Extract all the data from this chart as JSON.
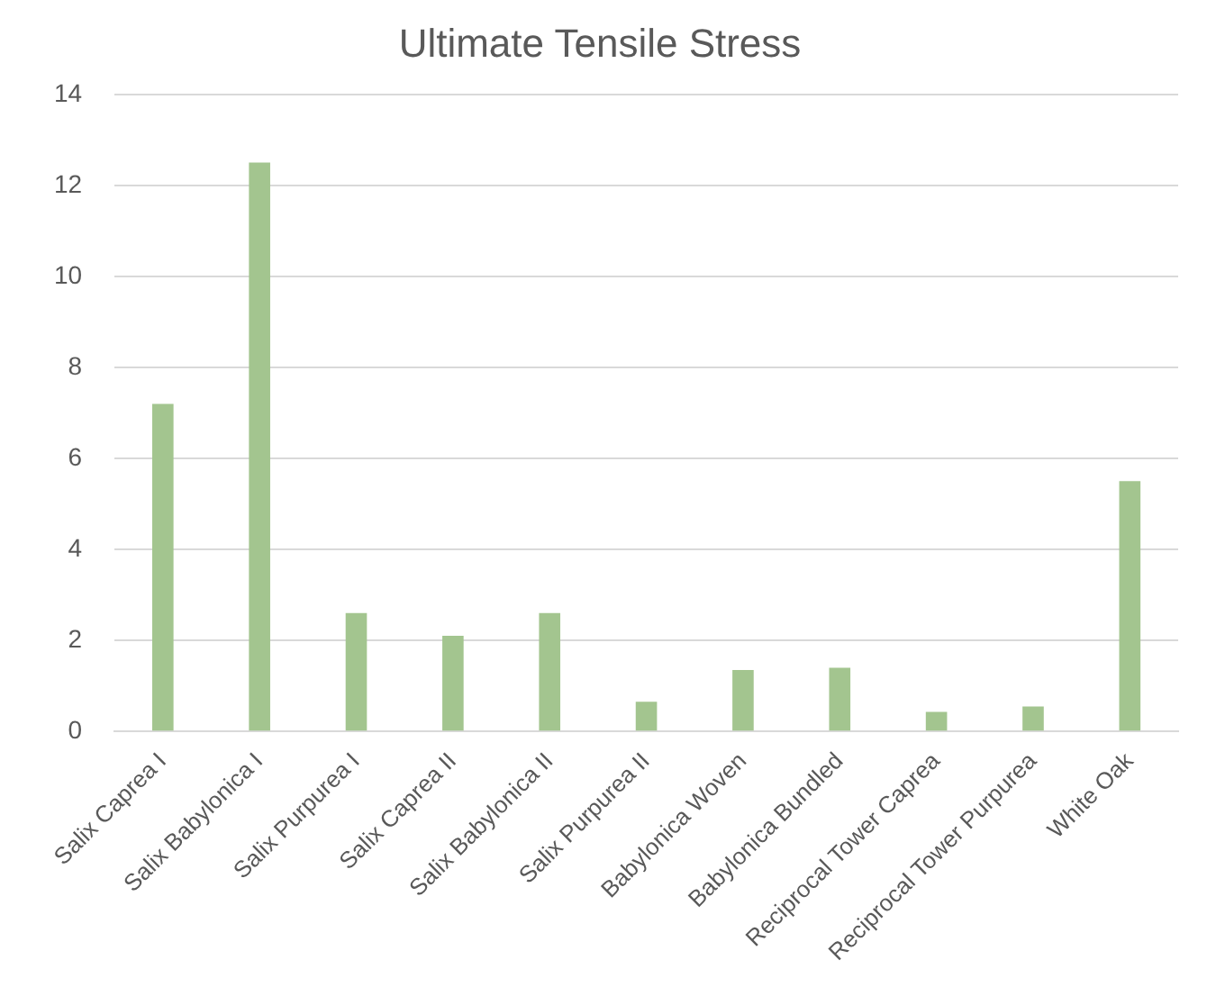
{
  "chart_data": {
    "type": "bar",
    "title": "Ultimate Tensile Stress",
    "categories": [
      "Salix Caprea I",
      "Salix Babylonica I",
      "Salix Purpurea I",
      "Salix Caprea II",
      "Salix Babylonica II",
      "Salix Purpurea II",
      "Babylonica Woven",
      "Babylonica Bundled",
      "Reciprocal Tower Caprea",
      "Reciprocal Tower Purpurea",
      "White Oak"
    ],
    "values": [
      7.2,
      12.5,
      2.6,
      2.1,
      2.6,
      0.65,
      1.35,
      1.4,
      0.43,
      0.55,
      5.5
    ],
    "color": "#a3c58f",
    "ylim": [
      0,
      14
    ],
    "yticks": [
      0,
      2,
      4,
      6,
      8,
      10,
      12,
      14
    ],
    "grid": "y"
  }
}
